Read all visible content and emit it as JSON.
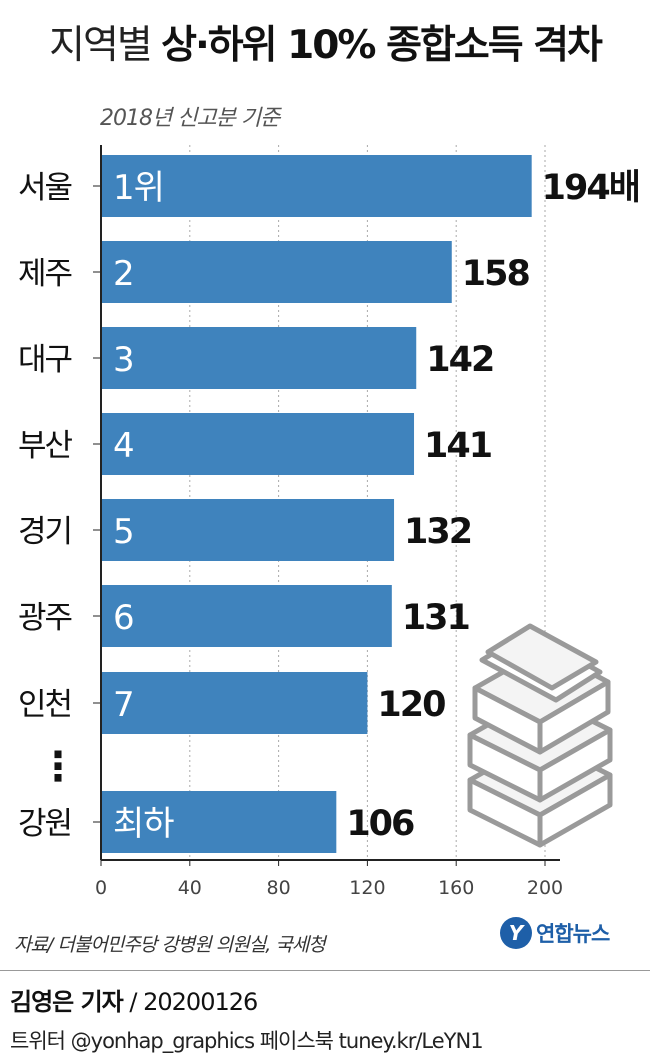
{
  "header": {
    "title_light": "지역별",
    "title_bold": "상·하위 10% 종합소득 격차",
    "subtitle": "2018년 신고분 기준"
  },
  "chart_data": {
    "type": "bar",
    "orientation": "horizontal",
    "categories": [
      "서울",
      "제주",
      "대구",
      "부산",
      "경기",
      "광주",
      "인천",
      "강원"
    ],
    "values": [
      194,
      158,
      142,
      141,
      132,
      131,
      120,
      106
    ],
    "rank_labels": [
      "1위",
      "2",
      "3",
      "4",
      "5",
      "6",
      "7",
      "최하"
    ],
    "value_labels": [
      "194배",
      "158",
      "142",
      "141",
      "132",
      "131",
      "120",
      "106"
    ],
    "xlim": [
      0,
      200
    ],
    "xticks": [
      "0",
      "40",
      "80",
      "120",
      "160",
      "200"
    ],
    "gridlines": true,
    "gap_marker": "⋮",
    "colors": {
      "bar": "#3f83bd",
      "grid": "#aaaaaa",
      "axis": "#222222"
    }
  },
  "footer": {
    "source": "자료/ 더불어민주당 강병원 의원실, 국세청",
    "logo_letter": "Y",
    "logo_text": "연합뉴스",
    "reporter_name": "김영은 기자",
    "reporter_date": "/ 20200126",
    "social": "트위터 @yonhap_graphics  페이스북 tuney.kr/LeYN1"
  }
}
